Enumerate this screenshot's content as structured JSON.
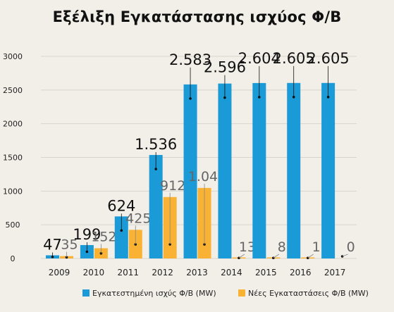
{
  "chart_data": {
    "type": "bar",
    "title": "Εξέλιξη Εγκατάστασης ισχύος Φ/Β",
    "xlabel": "",
    "ylabel": "",
    "categories": [
      "2009",
      "2010",
      "2011",
      "2012",
      "2013",
      "2014",
      "2015",
      "2016",
      "2017"
    ],
    "series": [
      {
        "name": "Εγκατεστημένη ισχύς Φ/Β (MW)",
        "color": "#1a9ad6",
        "values": [
          47,
          199,
          624,
          1536,
          2583,
          2596,
          2604,
          2605,
          2605
        ],
        "labels": [
          "47",
          "199",
          "624",
          "1.536",
          "2.583",
          "2.596",
          "2.604",
          "2.605",
          "2.605"
        ]
      },
      {
        "name": "Νέες Εγκαταστάσεις Φ/Β (MW)",
        "color": "#f9b233",
        "values": [
          35,
          152,
          425,
          912,
          1047,
          13,
          8,
          1,
          0
        ],
        "labels": [
          "35",
          "152",
          "425",
          "912",
          "1.047",
          "13",
          "8",
          "1",
          "0"
        ]
      }
    ],
    "yticks": [
      0,
      500,
      1000,
      1500,
      2000,
      2500,
      3000
    ],
    "ylim": [
      0,
      3000
    ],
    "grid": true,
    "legend": "bottom"
  }
}
